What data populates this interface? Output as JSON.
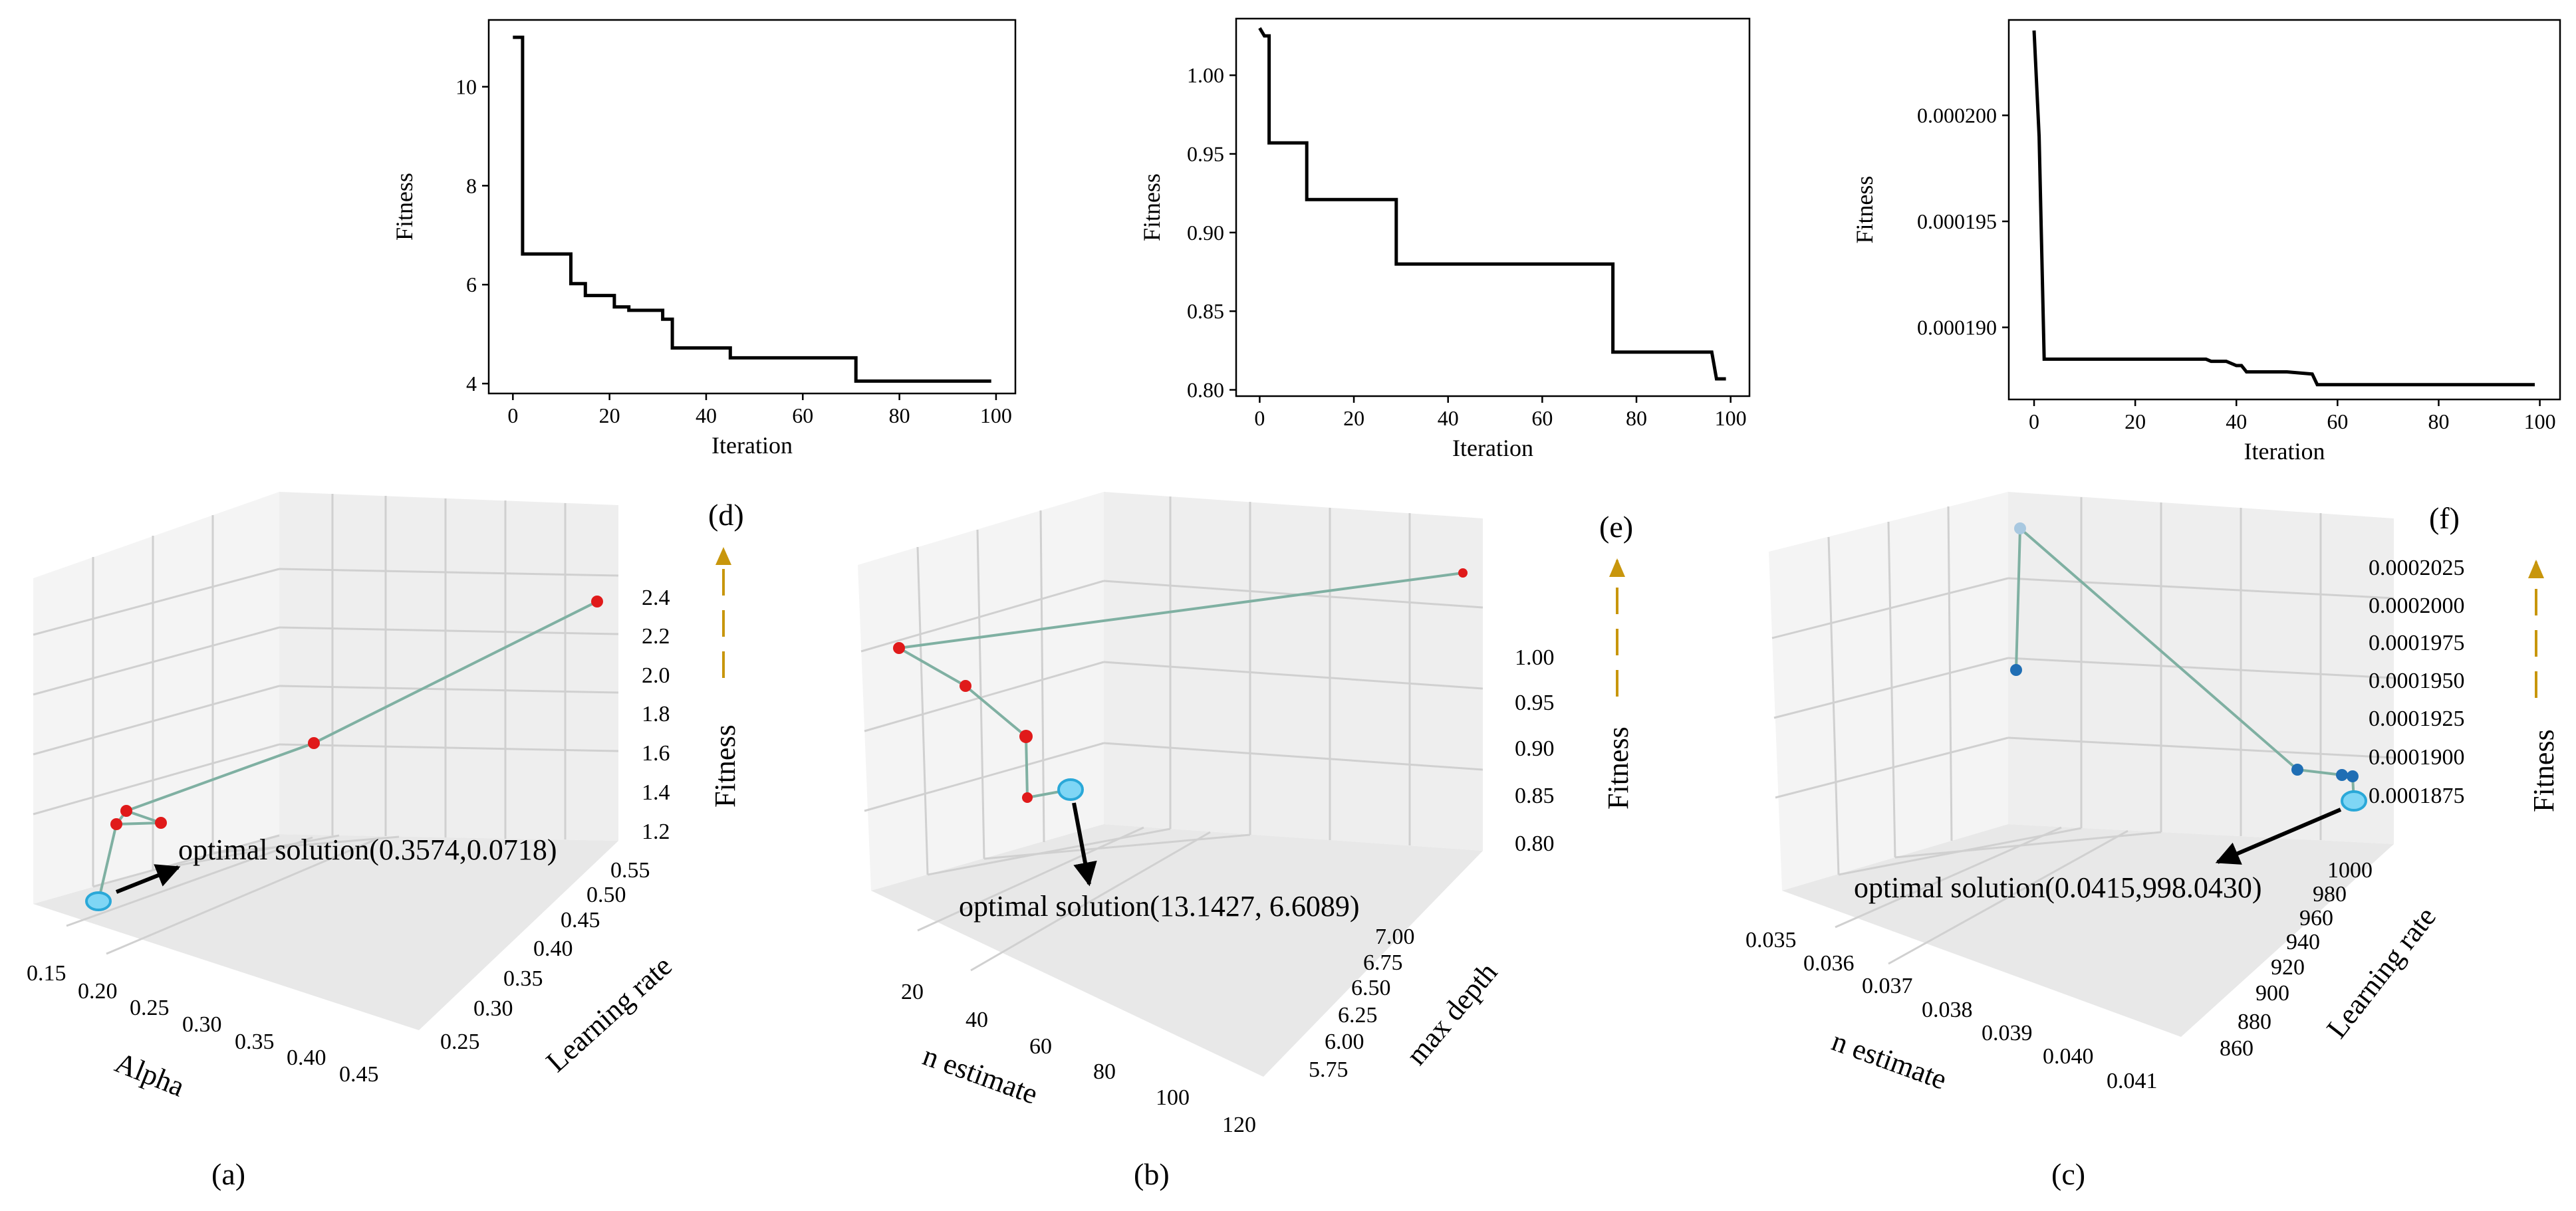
{
  "chart_data": [
    {
      "id": "d",
      "type": "line",
      "xlabel": "Iteration",
      "ylabel": "Fitness",
      "xlim": [
        -5,
        104
      ],
      "ylim": [
        3.8,
        11.35
      ],
      "xticks": [
        0,
        20,
        40,
        60,
        80,
        100
      ],
      "yticks": [
        4,
        6,
        8,
        10
      ],
      "ytick_labels": [
        "4",
        "6",
        "8",
        "10"
      ],
      "x": [
        0,
        2,
        2,
        12,
        12,
        15,
        15,
        21,
        21,
        24,
        24,
        31,
        31,
        33,
        33,
        45,
        45,
        71,
        71,
        99
      ],
      "y": [
        11,
        11,
        6.62,
        6.62,
        6.02,
        6.02,
        5.78,
        5.78,
        5.55,
        5.55,
        5.48,
        5.48,
        5.3,
        5.3,
        4.72,
        4.72,
        4.52,
        4.52,
        4.05,
        4.05
      ]
    },
    {
      "id": "e",
      "type": "line",
      "xlabel": "Iteration",
      "ylabel": "Fitness",
      "xlim": [
        -5,
        104
      ],
      "ylim": [
        0.796,
        1.036
      ],
      "xticks": [
        0,
        20,
        40,
        60,
        80,
        100
      ],
      "yticks": [
        0.8,
        0.85,
        0.9,
        0.95,
        1.0
      ],
      "ytick_labels": [
        "0.80",
        "0.85",
        "0.90",
        "0.95",
        "1.00"
      ],
      "x": [
        0,
        1,
        2,
        2,
        10,
        10,
        29,
        29,
        75,
        75,
        96,
        97,
        99
      ],
      "y": [
        1.03,
        1.025,
        1.025,
        0.957,
        0.957,
        0.921,
        0.921,
        0.88,
        0.88,
        0.824,
        0.824,
        0.807,
        0.807
      ]
    },
    {
      "id": "f",
      "type": "line",
      "xlabel": "Iteration",
      "ylabel": "Fitness",
      "xlim": [
        -5,
        104
      ],
      "ylim": [
        0.0001866,
        0.0002045
      ],
      "xticks": [
        0,
        20,
        40,
        60,
        80,
        100
      ],
      "yticks": [
        0.00019,
        0.000195,
        0.0002
      ],
      "ytick_labels": [
        "0.000190",
        "0.000195",
        "0.000200"
      ],
      "x": [
        0,
        1,
        2,
        34,
        35,
        38,
        40,
        41,
        42,
        50,
        55,
        56,
        99
      ],
      "y": [
        0.000204,
        0.000199,
        0.0001885,
        0.0001885,
        0.0001884,
        0.0001884,
        0.0001882,
        0.0001882,
        0.0001879,
        0.0001879,
        0.0001878,
        0.0001873,
        0.0001873
      ]
    },
    {
      "id": "a",
      "type": "scatter3d",
      "xlabel": "Alpha",
      "ylabel": "Learning rate",
      "zlabel": "Fitness",
      "xticks": [
        "0.15",
        "0.20",
        "0.25",
        "0.30",
        "0.35",
        "0.40",
        "0.45"
      ],
      "yticks": [
        "0.25",
        "0.30",
        "0.35",
        "0.40",
        "0.45",
        "0.50",
        "0.55"
      ],
      "zticks": [
        "1.2",
        "1.4",
        "1.6",
        "1.8",
        "2.0",
        "2.2",
        "2.4"
      ],
      "annotation": "optimal solution(0.3574,0.0718)",
      "caption": "(a)"
    },
    {
      "id": "b",
      "type": "scatter3d",
      "xlabel": "n estimate",
      "ylabel": "max depth",
      "zlabel": "Fitness",
      "xticks": [
        "20",
        "40",
        "60",
        "80",
        "100",
        "120"
      ],
      "yticks": [
        "5.75",
        "6.00",
        "6.25",
        "6.50",
        "6.75",
        "7.00"
      ],
      "zticks": [
        "0.80",
        "0.85",
        "0.90",
        "0.95",
        "1.00"
      ],
      "annotation": "optimal solution(13.1427, 6.6089)",
      "caption": "(b)"
    },
    {
      "id": "c",
      "type": "scatter3d",
      "xlabel": "n estimate",
      "ylabel": "Learning rate",
      "zlabel": "Fitness",
      "xticks": [
        "0.035",
        "0.036",
        "0.037",
        "0.038",
        "0.039",
        "0.040",
        "0.041"
      ],
      "yticks": [
        "860",
        "880",
        "900",
        "920",
        "940",
        "960",
        "980",
        "1000"
      ],
      "zticks": [
        "0.0001875",
        "0.0001900",
        "0.0001925",
        "0.0001950",
        "0.0001975",
        "0.0002000",
        "0.0002025"
      ],
      "annotation": "optimal solution(0.0415,998.0430)",
      "caption": "(c)"
    }
  ],
  "panel_letters": {
    "d": "(d)",
    "e": "(e)",
    "f": "(f)"
  },
  "colors": {
    "line": "#000000",
    "path": "#7fb0a2",
    "red_point": "#e01a1a",
    "blue_point": "#1f6eb4",
    "optimum": "#4fc3f0",
    "arrow": "#c8960c",
    "pane": "#f2f2f2",
    "grid": "#cfcfcf"
  }
}
